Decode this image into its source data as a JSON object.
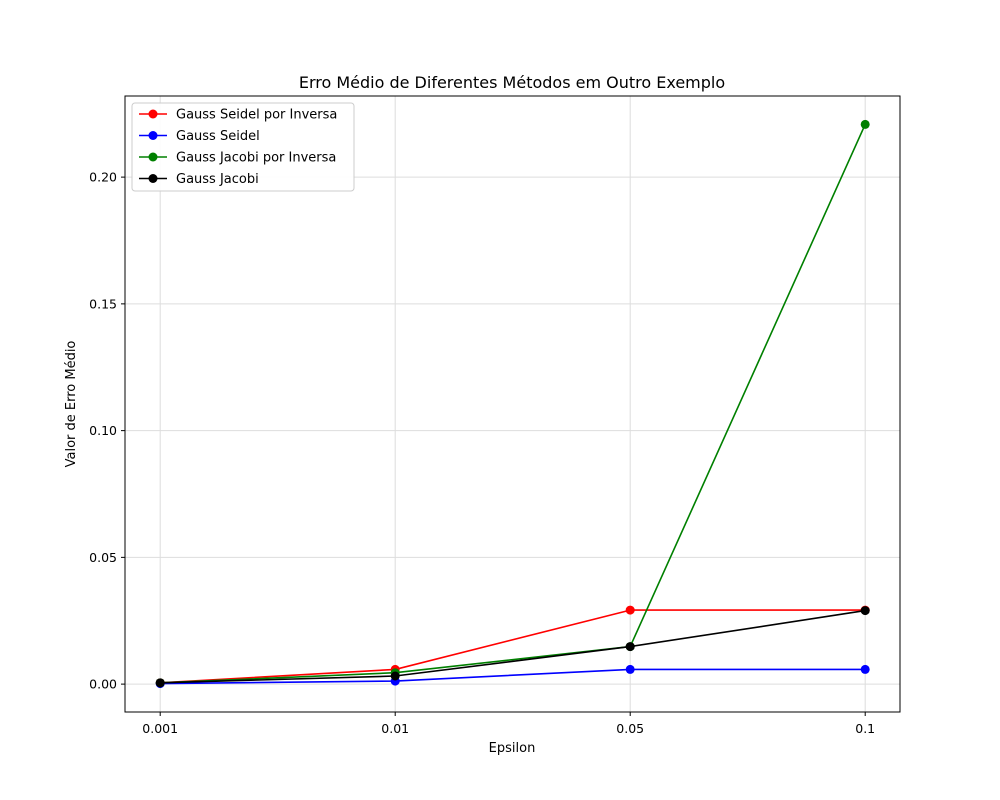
{
  "chart_data": {
    "type": "line",
    "title": "Erro Médio de Diferentes Métodos em Outro Exemplo",
    "xlabel": "Epsilon",
    "ylabel": "Valor de Erro Médio",
    "categories": [
      "0.001",
      "0.01",
      "0.05",
      "0.1"
    ],
    "ylim": [
      -0.011,
      0.232
    ],
    "yticks": [
      "0.00",
      "0.05",
      "0.10",
      "0.15",
      "0.20"
    ],
    "grid": true,
    "legend_position": "top-left",
    "series": [
      {
        "name": "Gauss Seidel por Inversa",
        "color": "#ff0000",
        "values": [
          0.0005,
          0.0058,
          0.0292,
          0.0292
        ]
      },
      {
        "name": "Gauss Seidel",
        "color": "#0000ff",
        "values": [
          0.0002,
          0.0012,
          0.0058,
          0.0058
        ]
      },
      {
        "name": "Gauss Jacobi por Inversa",
        "color": "#008000",
        "values": [
          0.0005,
          0.0045,
          0.0148,
          0.2208
        ]
      },
      {
        "name": "Gauss Jacobi",
        "color": "#000000",
        "values": [
          0.0005,
          0.0032,
          0.0148,
          0.029
        ]
      }
    ]
  }
}
